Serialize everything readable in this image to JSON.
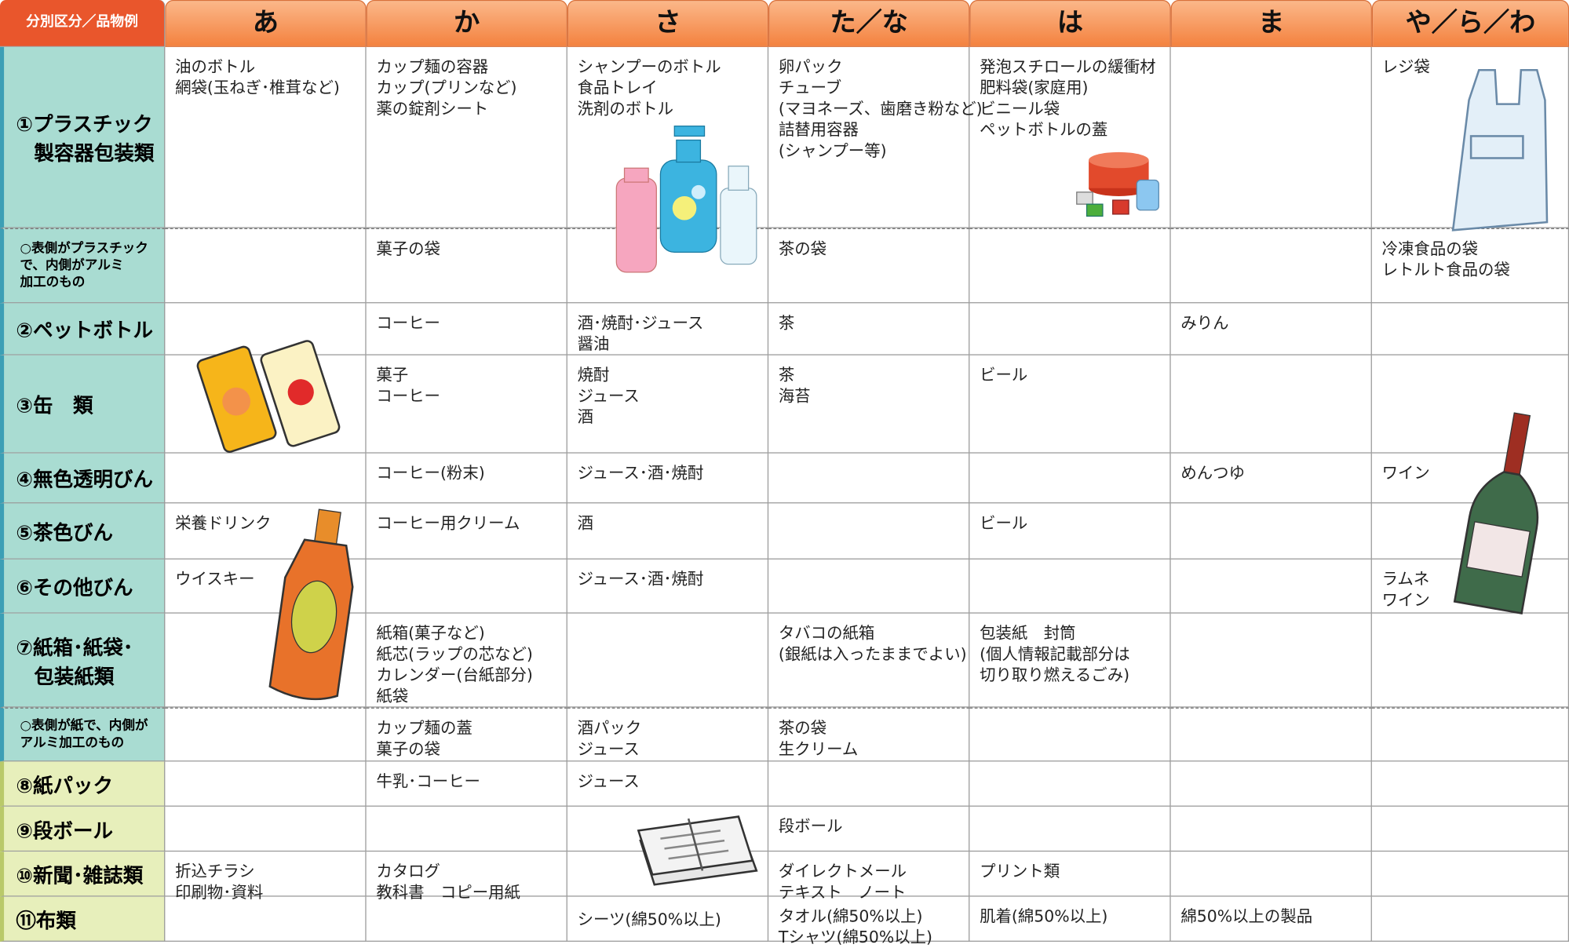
{
  "corner": "分別区分／品物例",
  "columns": [
    "あ",
    "か",
    "さ",
    "た／な",
    "は",
    "ま",
    "や／ら／わ"
  ],
  "rows": [
    {
      "label": [
        "①プラスチック",
        "製容器包装類"
      ],
      "cells": [
        [
          "油のボトル",
          "網袋(玉ねぎ･椎茸など)"
        ],
        [
          "カップ麺の容器",
          "カップ(プリンなど)",
          "薬の錠剤シート"
        ],
        [
          "シャンプーのボトル",
          "食品トレイ",
          "洗剤のボトル"
        ],
        [
          "卵パック",
          "チューブ",
          "(マヨネーズ、歯磨き粉など)",
          "詰替用容器",
          "(シャンプー等)"
        ],
        [
          "発泡スチロールの緩衝材",
          "肥料袋(家庭用)",
          "ビニール袋",
          "ペットボトルの蓋"
        ],
        null,
        [
          "レジ袋"
        ]
      ]
    },
    {
      "label": [
        "○表側がプラスチック",
        "で、内側がアルミ",
        "加工のもの"
      ],
      "cells": [
        null,
        [
          "菓子の袋"
        ],
        null,
        [
          "茶の袋"
        ],
        null,
        null,
        [
          "冷凍食品の袋",
          "レトルト食品の袋"
        ]
      ]
    },
    {
      "label": [
        "②ペットボトル"
      ],
      "cells": [
        null,
        [
          "コーヒー"
        ],
        [
          "酒･焼酎･ジュース",
          "醤油"
        ],
        [
          "茶"
        ],
        null,
        [
          "みりん"
        ],
        null
      ]
    },
    {
      "label": [
        "③缶　類"
      ],
      "cells": [
        null,
        [
          "菓子",
          "コーヒー"
        ],
        [
          "焼酎",
          "ジュース",
          "酒"
        ],
        [
          "茶",
          "海苔"
        ],
        [
          "ビール"
        ],
        null,
        null
      ]
    },
    {
      "label": [
        "④無色透明びん"
      ],
      "cells": [
        null,
        [
          "コーヒー(粉末)"
        ],
        [
          "ジュース･酒･焼酎"
        ],
        null,
        null,
        [
          "めんつゆ"
        ],
        [
          "ワイン"
        ]
      ]
    },
    {
      "label": [
        "⑤茶色びん"
      ],
      "cells": [
        [
          "栄養ドリンク"
        ],
        [
          "コーヒー用クリーム"
        ],
        [
          "酒"
        ],
        null,
        [
          "ビール"
        ],
        null,
        null
      ]
    },
    {
      "label": [
        "⑥その他びん"
      ],
      "cells": [
        [
          "ウイスキー"
        ],
        null,
        [
          "ジュース･酒･焼酎"
        ],
        null,
        null,
        null,
        [
          "ラムネ",
          "ワイン"
        ]
      ]
    },
    {
      "label": [
        "⑦紙箱･紙袋･",
        "包装紙類"
      ],
      "cells": [
        null,
        [
          "紙箱(菓子など)",
          "紙芯(ラップの芯など)",
          "カレンダー(台紙部分)",
          "紙袋"
        ],
        null,
        [
          "タバコの紙箱",
          "(銀紙は入ったままでよい)"
        ],
        [
          "包装紙　封筒",
          "(個人情報記載部分は",
          "切り取り燃えるごみ)"
        ],
        null,
        null
      ]
    },
    {
      "label": [
        "○表側が紙で、内側が",
        "アルミ加工のもの"
      ],
      "cells": [
        null,
        [
          "カップ麺の蓋",
          "菓子の袋"
        ],
        [
          "酒パック",
          "ジュース"
        ],
        [
          "茶の袋",
          "生クリーム"
        ],
        null,
        null,
        null
      ]
    },
    {
      "label": [
        "⑧紙パック"
      ],
      "cells": [
        null,
        [
          "牛乳･コーヒー"
        ],
        [
          "ジュース"
        ],
        null,
        null,
        null,
        null
      ]
    },
    {
      "label": [
        "⑨段ボール"
      ],
      "cells": [
        null,
        null,
        null,
        [
          "段ボール"
        ],
        null,
        null,
        null
      ]
    },
    {
      "label": [
        "⑩新聞･雑誌類"
      ],
      "cells": [
        [
          "折込チラシ",
          "印刷物･資料"
        ],
        [
          "カタログ",
          "教科書　コピー用紙"
        ],
        null,
        [
          "ダイレクトメール",
          "テキスト　ノート"
        ],
        [
          "プリント類"
        ],
        null,
        null
      ]
    },
    {
      "label": [
        "⑪布類"
      ],
      "cells": [
        null,
        null,
        [
          "シーツ(綿50%以上)"
        ],
        [
          "タオル(綿50%以上)",
          "Tシャツ(綿50%以上)"
        ],
        [
          "肌着(綿50%以上)"
        ],
        [
          "綿50%以上の製品"
        ],
        null
      ]
    }
  ]
}
